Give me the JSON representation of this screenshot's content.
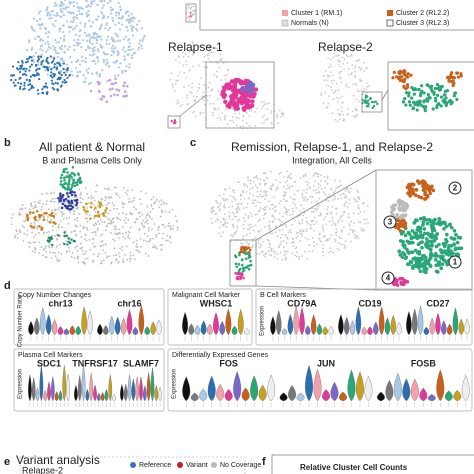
{
  "panel_a": {
    "legend": [
      "Cluster 1 (RM.1)",
      "Cluster 2 (RL2.2)",
      "Normals (N)",
      "Cluster 3 (RL2.3)"
    ],
    "relapse1": "Relapse-1",
    "relapse2": "Relapse-2"
  },
  "panel_b": {
    "letter": "b",
    "title": "All patient & Normal",
    "subtitle": "B and Plasma Cells Only"
  },
  "panel_c": {
    "letter": "c",
    "title": "Remission, Relapse-1, and Relapse-2",
    "subtitle": "Integration, All Cells",
    "clusters": [
      "1",
      "2",
      "3",
      "4"
    ]
  },
  "panel_d": {
    "letter": "d",
    "copy_number": {
      "title": "Copy Number Changes",
      "axis": "Copy Number Ratio",
      "genes": [
        "chr13",
        "chr16"
      ]
    },
    "malignant": {
      "title": "Malignant Cell Marker",
      "genes": [
        "WHSC1"
      ]
    },
    "b_cell": {
      "title": "B Cell Markers",
      "axis": "Expression",
      "genes": [
        "CD79A",
        "CD19",
        "CD27"
      ]
    },
    "plasma": {
      "title": "Plasma Cell Markers",
      "axis": "Expression",
      "genes": [
        "SDC1",
        "TNFRSF17",
        "SLAMF7"
      ]
    },
    "diff": {
      "title": "Differentially Expressed Genes",
      "axis": "Expression",
      "genes": [
        "FOS",
        "JUN",
        "FOSB"
      ]
    }
  },
  "panel_e": {
    "letter": "e",
    "title": "Variant analysis",
    "subtitle": "Relapse-2",
    "legend": [
      "Reference",
      "Variant",
      "No Coverage"
    ]
  },
  "panel_f": {
    "letter": "f",
    "title": "Relative Cluster Cell Counts"
  }
}
